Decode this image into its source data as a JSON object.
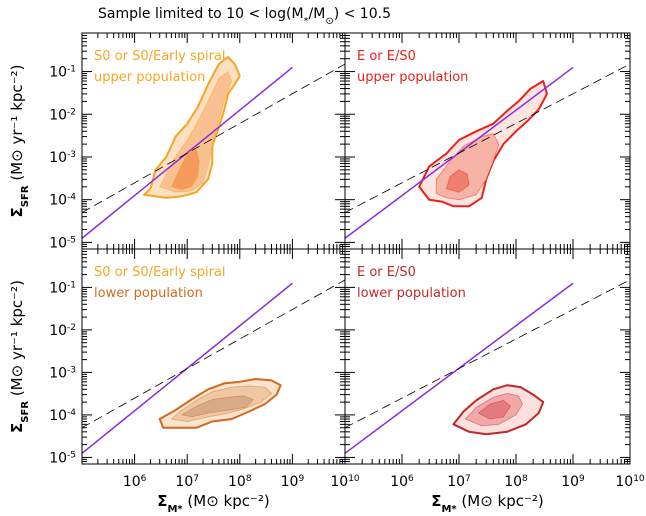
{
  "figure": {
    "title_parts": [
      "Sample limited to 10 < log(M",
      "*",
      "/M",
      "⊙",
      ") < 10.5"
    ],
    "ylabel_main": "Σ",
    "ylabel_sub": "SFR",
    "ylabel_rest": " (M⊙ yr⁻¹ kpc⁻²)",
    "xlabel_main": "Σ",
    "xlabel_sub": "M*",
    "xlabel_rest": " (M⊙ kpc⁻²)"
  },
  "colors": {
    "orange_light": "#fde0c2",
    "orange_mid": "#fbc08f",
    "orange_dark": "#f59a5a",
    "orange_line": "#f5a623",
    "red_light": "#fde4df",
    "red_mid": "#f7b3a6",
    "red_dark": "#ee7f6d",
    "red_line": "#e8211b",
    "brown_light": "#fbe3cc",
    "brown_mid": "#eec8a3",
    "brown_dark": "#d8aa87",
    "brown_line": "#d2691e",
    "dred_light": "#fbe0dd",
    "dred_mid": "#f2a8a8",
    "dred_dark": "#e27a80",
    "dred_line": "#c0292b",
    "diag_line": "#8a2be2",
    "dash_line": "#000000"
  },
  "chart_data": [
    {
      "type": "contour",
      "panel": "top-left",
      "label_lines": [
        "S0 or S0/Early spiral",
        "upper population"
      ],
      "label_color": "#f5a623",
      "x_scale": "log",
      "y_scale": "log",
      "xlim": [
        100000,
        10000000000
      ],
      "ylim": [
        7e-06,
        0.8
      ],
      "contours": [
        {
          "level": "outer",
          "points": [
            [
              1500000.0,
              0.00013
            ],
            [
              2000000.0,
              0.00018
            ],
            [
              2500000.0,
              0.0005
            ],
            [
              4000000.0,
              0.001
            ],
            [
              6000000.0,
              0.003
            ],
            [
              10000000.0,
              0.006
            ],
            [
              16000000.0,
              0.015
            ],
            [
              25000000.0,
              0.05
            ],
            [
              40000000.0,
              0.15
            ],
            [
              60000000.0,
              0.22
            ],
            [
              80000000.0,
              0.15
            ],
            [
              100000000.0,
              0.08
            ],
            [
              80000000.0,
              0.05
            ],
            [
              60000000.0,
              0.03
            ],
            [
              50000000.0,
              0.012
            ],
            [
              40000000.0,
              0.005
            ],
            [
              30000000.0,
              0.0018
            ],
            [
              30000000.0,
              0.0007
            ],
            [
              25000000.0,
              0.0003
            ],
            [
              15000000.0,
              0.00015
            ],
            [
              8000000.0,
              0.00012
            ],
            [
              4000000.0,
              0.00011
            ]
          ]
        },
        {
          "level": "mid",
          "points": [
            [
              3000000.0,
              0.0002
            ],
            [
              4000000.0,
              0.0004
            ],
            [
              6000000.0,
              0.001
            ],
            [
              10000000.0,
              0.0025
            ],
            [
              15000000.0,
              0.006
            ],
            [
              25000000.0,
              0.02
            ],
            [
              40000000.0,
              0.07
            ],
            [
              60000000.0,
              0.1
            ],
            [
              70000000.0,
              0.06
            ],
            [
              50000000.0,
              0.02
            ],
            [
              40000000.0,
              0.007
            ],
            [
              30000000.0,
              0.002
            ],
            [
              25000000.0,
              0.0006
            ],
            [
              20000000.0,
              0.00025
            ],
            [
              12000000.0,
              0.00016
            ],
            [
              6000000.0,
              0.00015
            ]
          ]
        },
        {
          "level": "inner",
          "points": [
            [
              5000000.0,
              0.0002
            ],
            [
              7000000.0,
              0.0005
            ],
            [
              10000000.0,
              0.0012
            ],
            [
              15000000.0,
              0.0015
            ],
            [
              17000000.0,
              0.0008
            ],
            [
              16000000.0,
              0.00035
            ],
            [
              12000000.0,
              0.0002
            ],
            [
              8000000.0,
              0.00017
            ]
          ]
        }
      ]
    },
    {
      "type": "contour",
      "panel": "top-right",
      "label_lines": [
        "E or E/S0",
        "upper population"
      ],
      "label_color": "#e8211b",
      "x_scale": "log",
      "y_scale": "log",
      "xlim": [
        100000,
        10000000000
      ],
      "ylim": [
        7e-06,
        0.8
      ],
      "contours": [
        {
          "level": "outer",
          "points": [
            [
              3000000.0,
              0.0001
            ],
            [
              2000000.0,
              0.0002
            ],
            [
              3000000.0,
              0.0006
            ],
            [
              6000000.0,
              0.0012
            ],
            [
              10000000.0,
              0.0025
            ],
            [
              20000000.0,
              0.004
            ],
            [
              40000000.0,
              0.006
            ],
            [
              70000000.0,
              0.012
            ],
            [
              110000000.0,
              0.02
            ],
            [
              180000000.0,
              0.04
            ],
            [
              300000000.0,
              0.06
            ],
            [
              350000000.0,
              0.03
            ],
            [
              250000000.0,
              0.013
            ],
            [
              160000000.0,
              0.007
            ],
            [
              100000000.0,
              0.004
            ],
            [
              60000000.0,
              0.002
            ],
            [
              40000000.0,
              0.0008
            ],
            [
              30000000.0,
              0.0003
            ],
            [
              25000000.0,
              0.00011
            ],
            [
              15000000.0,
              7e-05
            ],
            [
              8000000.0,
              7e-05
            ],
            [
              5000000.0,
              9e-05
            ]
          ]
        },
        {
          "level": "mid",
          "points": [
            [
              4000000.0,
              0.00014
            ],
            [
              4000000.0,
              0.0003
            ],
            [
              7000000.0,
              0.0008
            ],
            [
              12000000.0,
              0.0018
            ],
            [
              25000000.0,
              0.003
            ],
            [
              40000000.0,
              0.0035
            ],
            [
              50000000.0,
              0.002
            ],
            [
              40000000.0,
              0.0008
            ],
            [
              30000000.0,
              0.0003
            ],
            [
              20000000.0,
              0.00013
            ],
            [
              10000000.0,
              0.0001
            ],
            [
              6000000.0,
              0.00011
            ]
          ]
        },
        {
          "level": "inner",
          "points": [
            [
              6000000.0,
              0.00018
            ],
            [
              7000000.0,
              0.00035
            ],
            [
              10000000.0,
              0.0005
            ],
            [
              14000000.0,
              0.0004
            ],
            [
              15000000.0,
              0.00022
            ],
            [
              10000000.0,
              0.00015
            ]
          ]
        }
      ]
    },
    {
      "type": "contour",
      "panel": "bottom-left",
      "label_lines": [
        "S0 or S0/Early spiral",
        "lower population"
      ],
      "label_color": "#f5a623",
      "label_color_line2": "#d2691e",
      "x_scale": "log",
      "y_scale": "log",
      "xlim": [
        100000,
        10000000000
      ],
      "ylim": [
        7e-06,
        0.8
      ],
      "contours": [
        {
          "level": "outer",
          "points": [
            [
              3500000.0,
              5e-05
            ],
            [
              3000000.0,
              8e-05
            ],
            [
              6000000.0,
              0.00013
            ],
            [
              12000000.0,
              0.00023
            ],
            [
              25000000.0,
              0.0004
            ],
            [
              50000000.0,
              0.00055
            ],
            [
              100000000.0,
              0.0006
            ],
            [
              200000000.0,
              0.0007
            ],
            [
              400000000.0,
              0.00065
            ],
            [
              600000000.0,
              0.0005
            ],
            [
              500000000.0,
              0.0003
            ],
            [
              300000000.0,
              0.00018
            ],
            [
              150000000.0,
              0.00012
            ],
            [
              70000000.0,
              8e-05
            ],
            [
              30000000.0,
              7e-05
            ],
            [
              15000000.0,
              5e-05
            ],
            [
              8000000.0,
              5e-05
            ]
          ]
        },
        {
          "level": "mid",
          "points": [
            [
              5000000.0,
              8e-05
            ],
            [
              8000000.0,
              0.00013
            ],
            [
              15000000.0,
              0.00022
            ],
            [
              30000000.0,
              0.00035
            ],
            [
              70000000.0,
              0.00045
            ],
            [
              150000000.0,
              0.00048
            ],
            [
              300000000.0,
              0.00045
            ],
            [
              400000000.0,
              0.00032
            ],
            [
              250000000.0,
              0.0002
            ],
            [
              120000000.0,
              0.00014
            ],
            [
              60000000.0,
              0.00011
            ],
            [
              25000000.0,
              9e-05
            ],
            [
              10000000.0,
              7e-05
            ]
          ]
        },
        {
          "level": "inner",
          "points": [
            [
              8000000.0,
              0.0001
            ],
            [
              15000000.0,
              0.00016
            ],
            [
              30000000.0,
              0.00023
            ],
            [
              60000000.0,
              0.00026
            ],
            [
              120000000.0,
              0.00028
            ],
            [
              180000000.0,
              0.00023
            ],
            [
              130000000.0,
              0.00015
            ],
            [
              60000000.0,
              0.00013
            ],
            [
              25000000.0,
              0.00011
            ],
            [
              12000000.0,
              9e-05
            ]
          ]
        }
      ]
    },
    {
      "type": "contour",
      "panel": "bottom-right",
      "label_lines": [
        "E or E/S0",
        "lower population"
      ],
      "label_color": "#c0292b",
      "x_scale": "log",
      "y_scale": "log",
      "xlim": [
        100000,
        10000000000
      ],
      "ylim": [
        7e-06,
        0.8
      ],
      "contours": [
        {
          "level": "outer",
          "points": [
            [
              8000000.0,
              6e-05
            ],
            [
              12000000.0,
              0.00012
            ],
            [
              20000000.0,
              0.00022
            ],
            [
              40000000.0,
              0.0004
            ],
            [
              70000000.0,
              0.0005
            ],
            [
              120000000.0,
              0.00045
            ],
            [
              200000000.0,
              0.0003
            ],
            [
              300000000.0,
              0.0002
            ],
            [
              250000000.0,
              0.00011
            ],
            [
              150000000.0,
              6e-05
            ],
            [
              70000000.0,
              4e-05
            ],
            [
              30000000.0,
              3.5e-05
            ],
            [
              15000000.0,
              4e-05
            ]
          ]
        },
        {
          "level": "mid",
          "points": [
            [
              13000000.0,
              8e-05
            ],
            [
              20000000.0,
              0.00015
            ],
            [
              40000000.0,
              0.00026
            ],
            [
              70000000.0,
              0.00032
            ],
            [
              110000000.0,
              0.00028
            ],
            [
              130000000.0,
              0.00018
            ],
            [
              100000000.0,
              0.0001
            ],
            [
              50000000.0,
              6e-05
            ],
            [
              25000000.0,
              5.5e-05
            ]
          ]
        },
        {
          "level": "inner",
          "points": [
            [
              22000000.0,
              0.00011
            ],
            [
              35000000.0,
              0.00018
            ],
            [
              60000000.0,
              0.00022
            ],
            [
              80000000.0,
              0.00016
            ],
            [
              60000000.0,
              9e-05
            ],
            [
              35000000.0,
              8e-05
            ]
          ]
        }
      ]
    }
  ],
  "axes": {
    "x_tick_labels": [
      {
        "base": "10",
        "exp": "6"
      },
      {
        "base": "10",
        "exp": "7"
      },
      {
        "base": "10",
        "exp": "8"
      },
      {
        "base": "10",
        "exp": "9"
      },
      {
        "base": "10",
        "exp": "10"
      }
    ],
    "y_tick_labels": [
      {
        "base": "10",
        "exp": "-1"
      },
      {
        "base": "10",
        "exp": "-2"
      },
      {
        "base": "10",
        "exp": "-3"
      },
      {
        "base": "10",
        "exp": "-4"
      },
      {
        "base": "10",
        "exp": "-5"
      }
    ]
  }
}
